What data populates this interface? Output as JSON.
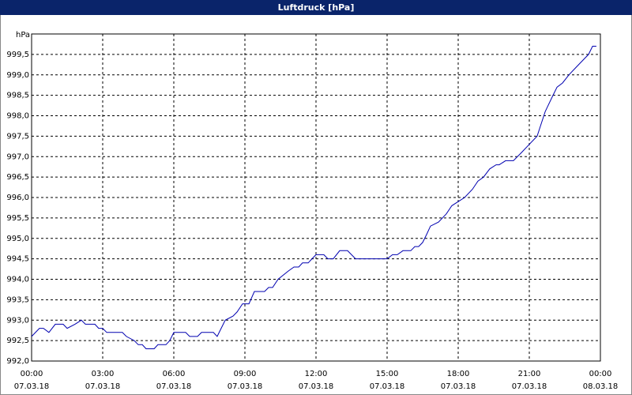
{
  "chart_data": {
    "type": "line",
    "title": "Luftdruck [hPa]",
    "y_label": "hPa",
    "x": [
      0,
      0.33,
      0.5,
      0.73,
      1.0,
      1.33,
      1.5,
      1.83,
      2.1,
      2.27,
      2.67,
      2.83,
      3.0,
      3.17,
      3.83,
      4.0,
      4.33,
      4.5,
      4.67,
      4.83,
      5.17,
      5.33,
      5.67,
      5.83,
      6.0,
      6.5,
      6.67,
      7.0,
      7.17,
      7.67,
      7.83,
      8.17,
      8.5,
      8.67,
      8.9,
      9.17,
      9.4,
      9.83,
      10.0,
      10.17,
      10.4,
      10.83,
      11.07,
      11.27,
      11.43,
      11.67,
      11.83,
      12.0,
      12.33,
      12.5,
      12.73,
      13.0,
      13.33,
      13.67,
      15.0,
      15.23,
      15.43,
      15.67,
      16.0,
      16.17,
      16.33,
      16.5,
      16.67,
      16.83,
      17.17,
      17.5,
      17.73,
      18.0,
      18.27,
      18.6,
      18.83,
      19.07,
      19.33,
      19.6,
      19.73,
      20.0,
      20.33,
      20.67,
      21.0,
      21.33,
      21.67,
      22.0,
      22.17,
      22.4,
      22.67,
      23.0,
      23.33,
      23.5,
      23.67,
      23.83
    ],
    "series": [
      {
        "name": "Luftdruck",
        "color": "#0000b0",
        "values": [
          992.6,
          992.8,
          992.8,
          992.7,
          992.9,
          992.9,
          992.8,
          992.9,
          993.0,
          992.9,
          992.9,
          992.8,
          992.8,
          992.7,
          992.7,
          992.6,
          992.5,
          992.4,
          992.4,
          992.3,
          992.3,
          992.4,
          992.4,
          992.5,
          992.7,
          992.7,
          992.6,
          992.6,
          992.7,
          992.7,
          992.6,
          993.0,
          993.1,
          993.2,
          993.4,
          993.4,
          993.7,
          993.7,
          993.8,
          993.8,
          994.0,
          994.2,
          994.3,
          994.3,
          994.4,
          994.4,
          994.5,
          994.6,
          994.6,
          994.5,
          994.5,
          994.7,
          994.7,
          994.5,
          994.5,
          994.6,
          994.6,
          994.7,
          994.7,
          994.8,
          994.8,
          994.9,
          995.1,
          995.3,
          995.4,
          995.6,
          995.8,
          995.9,
          996.0,
          996.2,
          996.4,
          996.5,
          996.7,
          996.8,
          996.8,
          996.9,
          996.9,
          997.1,
          997.3,
          997.5,
          998.1,
          998.5,
          998.7,
          998.8,
          999.0,
          999.2,
          999.4,
          999.5,
          999.7,
          999.7
        ]
      }
    ],
    "xlim": [
      0,
      24
    ],
    "xticks": [
      {
        "value": 0,
        "label": "00:00"
      },
      {
        "value": 3,
        "label": "03:00"
      },
      {
        "value": 6,
        "label": "06:00"
      },
      {
        "value": 9,
        "label": "09:00"
      },
      {
        "value": 12,
        "label": "12:00"
      },
      {
        "value": 15,
        "label": "15:00"
      },
      {
        "value": 18,
        "label": "18:00"
      },
      {
        "value": 21,
        "label": "21:00"
      },
      {
        "value": 24,
        "label": "00:00"
      }
    ],
    "xtick_dates": [
      "07.03.18",
      "07.03.18",
      "07.03.18",
      "07.03.18",
      "07.03.18",
      "07.03.18",
      "07.03.18",
      "07.03.18",
      "08.03.18"
    ],
    "ylim": [
      992.0,
      1000.0
    ],
    "yticks": [
      {
        "value": 992.0,
        "label": "992,0"
      },
      {
        "value": 992.5,
        "label": "992,5"
      },
      {
        "value": 993.0,
        "label": "993,0"
      },
      {
        "value": 993.5,
        "label": "993,5"
      },
      {
        "value": 994.0,
        "label": "994,0"
      },
      {
        "value": 994.5,
        "label": "994,5"
      },
      {
        "value": 995.0,
        "label": "995,0"
      },
      {
        "value": 995.5,
        "label": "995,5"
      },
      {
        "value": 996.0,
        "label": "996,0"
      },
      {
        "value": 996.5,
        "label": "996,5"
      },
      {
        "value": 997.0,
        "label": "997,0"
      },
      {
        "value": 997.5,
        "label": "997,5"
      },
      {
        "value": 998.0,
        "label": "998,0"
      },
      {
        "value": 998.5,
        "label": "998,5"
      },
      {
        "value": 999.0,
        "label": "999,0"
      },
      {
        "value": 999.5,
        "label": "999,5"
      }
    ],
    "grid": true
  }
}
